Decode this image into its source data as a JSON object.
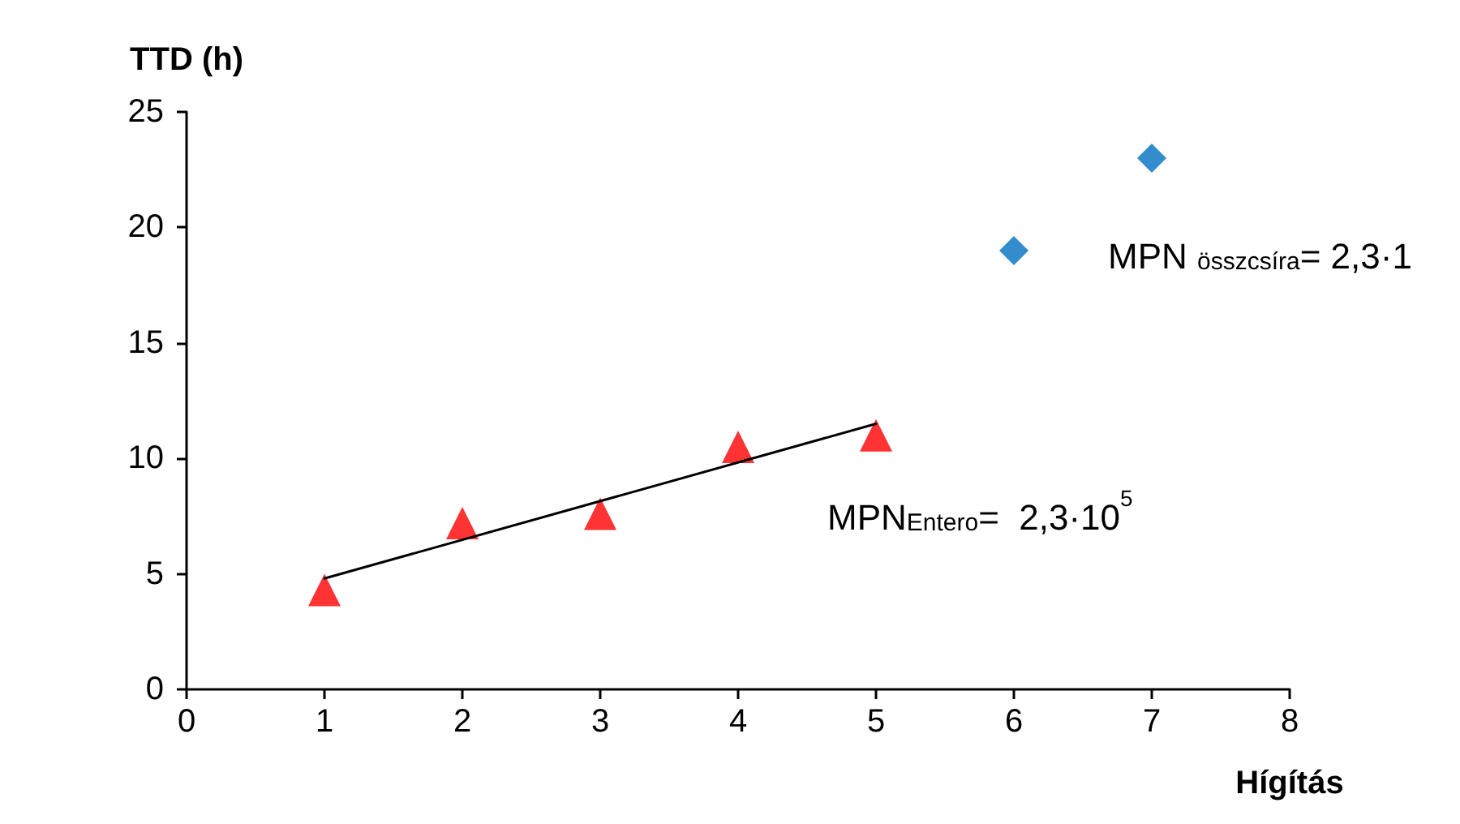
{
  "chart_data": {
    "type": "scatter",
    "ylabel": "TTD (h)",
    "xlabel": "Hígítás",
    "xlim": [
      0,
      8
    ],
    "xticks": [
      0,
      1,
      2,
      3,
      4,
      5,
      6,
      7,
      8
    ],
    "ylim": [
      0,
      25
    ],
    "yticks": [
      0,
      5,
      10,
      15,
      20,
      25
    ],
    "grid": false,
    "series": [
      {
        "marker": "triangle",
        "color": "#ff0000",
        "x": [
          1,
          2,
          3,
          4,
          5
        ],
        "values": [
          4.3,
          7.2,
          7.6,
          10.5,
          11.0
        ]
      },
      {
        "marker": "diamond",
        "color": "#0070c0",
        "x": [
          6,
          7
        ],
        "values": [
          19.0,
          23.0
        ]
      },
      {
        "type": "line",
        "marker": "none",
        "line_style": "solid",
        "color": "#000000",
        "x": [
          1,
          5
        ],
        "values": [
          4.8,
          11.5
        ]
      }
    ],
    "annotations": [
      "MPN$_{Entero}$=  2,3·10$^{5}$",
      "MPN $_{összcsíra}$= 2,3·1"
    ]
  }
}
